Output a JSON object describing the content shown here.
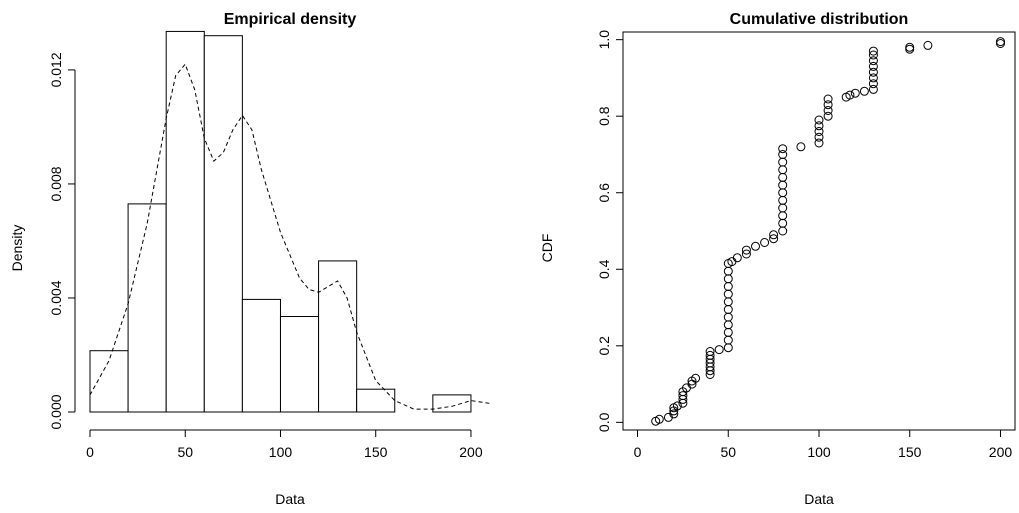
{
  "chart_data": [
    {
      "type": "bar",
      "title": "Empirical density",
      "xlabel": "Data",
      "ylabel": "Density",
      "xlim": [
        0,
        210
      ],
      "ylim": [
        0,
        0.0134
      ],
      "x_ticks": [
        0,
        50,
        100,
        150,
        200
      ],
      "y_ticks": [
        0.0,
        0.004,
        0.008,
        0.012
      ],
      "x_tick_labels": [
        "0",
        "50",
        "100",
        "150",
        "200"
      ],
      "y_tick_labels": [
        "0.000",
        "0.004",
        "0.008",
        "0.012"
      ],
      "bins": [
        {
          "from": 0,
          "to": 20,
          "density": 0.00215
        },
        {
          "from": 20,
          "to": 40,
          "density": 0.0073
        },
        {
          "from": 40,
          "to": 60,
          "density": 0.01335
        },
        {
          "from": 60,
          "to": 80,
          "density": 0.0132
        },
        {
          "from": 80,
          "to": 100,
          "density": 0.00395
        },
        {
          "from": 100,
          "to": 120,
          "density": 0.00335
        },
        {
          "from": 120,
          "to": 140,
          "density": 0.0053
        },
        {
          "from": 140,
          "to": 160,
          "density": 0.0008
        },
        {
          "from": 160,
          "to": 180,
          "density": 0.0
        },
        {
          "from": 180,
          "to": 200,
          "density": 0.0006
        }
      ],
      "density_curve": {
        "style": "dashed",
        "x": [
          -10,
          0,
          10,
          20,
          30,
          40,
          45,
          50,
          55,
          60,
          65,
          70,
          75,
          80,
          85,
          90,
          100,
          110,
          115,
          120,
          125,
          130,
          135,
          140,
          150,
          160,
          170,
          180,
          190,
          200,
          210
        ],
        "y": [
          0.0001,
          0.0006,
          0.0018,
          0.0038,
          0.0066,
          0.0103,
          0.0118,
          0.0122,
          0.0113,
          0.0096,
          0.0088,
          0.0091,
          0.0099,
          0.0104,
          0.0099,
          0.0085,
          0.0063,
          0.0047,
          0.0043,
          0.0042,
          0.0044,
          0.0046,
          0.004,
          0.0028,
          0.0011,
          0.0004,
          0.0001,
          0.0001,
          0.0002,
          0.0004,
          0.0003
        ]
      }
    },
    {
      "type": "scatter",
      "title": "Cumulative distribution",
      "xlabel": "Data",
      "ylabel": "CDF",
      "xlim": [
        -8,
        208
      ],
      "ylim": [
        -0.02,
        1.02
      ],
      "x_ticks": [
        0,
        50,
        100,
        150,
        200
      ],
      "y_ticks": [
        0.0,
        0.2,
        0.4,
        0.6,
        0.8,
        1.0
      ],
      "x_tick_labels": [
        "0",
        "50",
        "100",
        "150",
        "200"
      ],
      "y_tick_labels": [
        "0.0",
        "0.2",
        "0.4",
        "0.6",
        "0.8",
        "1.0"
      ],
      "marker": "open-circle",
      "points": [
        [
          10,
          0.003
        ],
        [
          12,
          0.008
        ],
        [
          17,
          0.013
        ],
        [
          20,
          0.022
        ],
        [
          20,
          0.03
        ],
        [
          20,
          0.038
        ],
        [
          22,
          0.043
        ],
        [
          25,
          0.05
        ],
        [
          25,
          0.06
        ],
        [
          25,
          0.07
        ],
        [
          25,
          0.08
        ],
        [
          27,
          0.09
        ],
        [
          30,
          0.1
        ],
        [
          30,
          0.108
        ],
        [
          32,
          0.115
        ],
        [
          40,
          0.125
        ],
        [
          40,
          0.135
        ],
        [
          40,
          0.145
        ],
        [
          40,
          0.155
        ],
        [
          40,
          0.165
        ],
        [
          40,
          0.175
        ],
        [
          40,
          0.185
        ],
        [
          45,
          0.19
        ],
        [
          50,
          0.195
        ],
        [
          50,
          0.215
        ],
        [
          50,
          0.235
        ],
        [
          50,
          0.255
        ],
        [
          50,
          0.275
        ],
        [
          50,
          0.295
        ],
        [
          50,
          0.315
        ],
        [
          50,
          0.335
        ],
        [
          50,
          0.355
        ],
        [
          50,
          0.375
        ],
        [
          50,
          0.395
        ],
        [
          50,
          0.415
        ],
        [
          52,
          0.42
        ],
        [
          55,
          0.43
        ],
        [
          60,
          0.44
        ],
        [
          60,
          0.45
        ],
        [
          65,
          0.46
        ],
        [
          70,
          0.47
        ],
        [
          75,
          0.48
        ],
        [
          75,
          0.49
        ],
        [
          80,
          0.5
        ],
        [
          80,
          0.52
        ],
        [
          80,
          0.54
        ],
        [
          80,
          0.56
        ],
        [
          80,
          0.58
        ],
        [
          80,
          0.6
        ],
        [
          80,
          0.62
        ],
        [
          80,
          0.64
        ],
        [
          80,
          0.66
        ],
        [
          80,
          0.68
        ],
        [
          80,
          0.7
        ],
        [
          80,
          0.715
        ],
        [
          90,
          0.72
        ],
        [
          100,
          0.73
        ],
        [
          100,
          0.745
        ],
        [
          100,
          0.76
        ],
        [
          100,
          0.775
        ],
        [
          100,
          0.79
        ],
        [
          105,
          0.8
        ],
        [
          105,
          0.815
        ],
        [
          105,
          0.83
        ],
        [
          105,
          0.845
        ],
        [
          115,
          0.85
        ],
        [
          117,
          0.855
        ],
        [
          120,
          0.86
        ],
        [
          125,
          0.865
        ],
        [
          130,
          0.87
        ],
        [
          130,
          0.885
        ],
        [
          130,
          0.9
        ],
        [
          130,
          0.915
        ],
        [
          130,
          0.93
        ],
        [
          130,
          0.945
        ],
        [
          130,
          0.96
        ],
        [
          130,
          0.97
        ],
        [
          150,
          0.975
        ],
        [
          150,
          0.98
        ],
        [
          160,
          0.985
        ],
        [
          200,
          0.99
        ],
        [
          200,
          0.995
        ]
      ]
    }
  ]
}
